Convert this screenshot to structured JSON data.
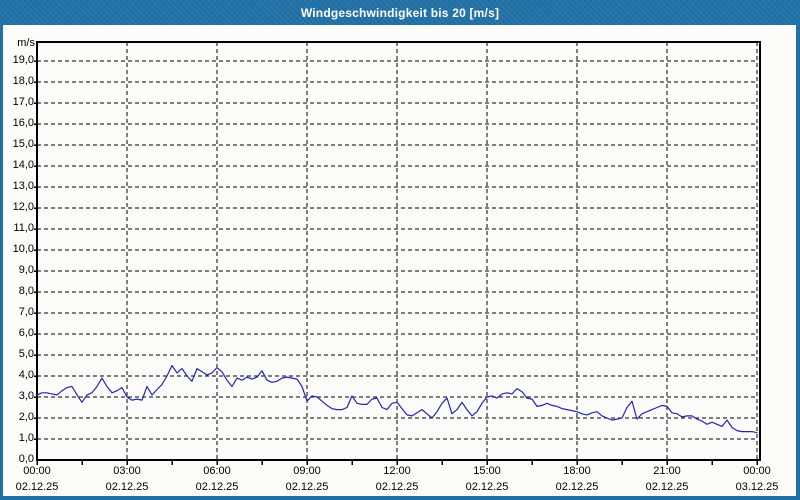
{
  "window": {
    "title": "Windgeschwindigkeit bis 20 [m/s]"
  },
  "colors": {
    "titlebar_bg": "#2171A7",
    "border": "#2171A7",
    "background": "#FCFDFB",
    "frame": "#000000",
    "grid": "#000000",
    "plot_line": "#2424B6",
    "title_text": "#FFFFFF"
  },
  "chart_data": {
    "type": "line",
    "title": "Windgeschwindigkeit bis 20 [m/s]",
    "unit_label": "m/s",
    "ylim": [
      0,
      20
    ],
    "ytick_step": 1.0,
    "ytick_labels": [
      "0,0",
      "1,0",
      "2,0",
      "3,0",
      "4,0",
      "5,0",
      "6,0",
      "7,0",
      "8,0",
      "9,0",
      "10,0",
      "11,0",
      "12,0",
      "13,0",
      "14,0",
      "15,0",
      "16,0",
      "17,0",
      "18,0",
      "19,0"
    ],
    "xlim_hours": [
      0,
      24
    ],
    "x_major_step_hours": 3,
    "x_minor_step_hours": 1.5,
    "grid": {
      "style": "dashed",
      "color": "#000000"
    },
    "legend": "none",
    "xticks": [
      {
        "hour": 0,
        "time": "00:00",
        "date": "02.12.25"
      },
      {
        "hour": 3,
        "time": "03:00",
        "date": "02.12.25"
      },
      {
        "hour": 6,
        "time": "06:00",
        "date": "02.12.25"
      },
      {
        "hour": 9,
        "time": "09:00",
        "date": "02.12.25"
      },
      {
        "hour": 12,
        "time": "12:00",
        "date": "02.12.25"
      },
      {
        "hour": 15,
        "time": "15:00",
        "date": "02.12.25"
      },
      {
        "hour": 18,
        "time": "18:00",
        "date": "02.12.25"
      },
      {
        "hour": 21,
        "time": "21:00",
        "date": "02.12.25"
      },
      {
        "hour": 24,
        "time": "00:00",
        "date": "03.12.25"
      }
    ],
    "series": [
      {
        "name": "Windgeschwindigkeit",
        "color": "#2424B6",
        "start_hour": 0,
        "interval_minutes": 10,
        "values": [
          3.1,
          3.2,
          3.2,
          3.15,
          3.1,
          3.3,
          3.45,
          3.5,
          3.1,
          2.75,
          3.1,
          3.2,
          3.5,
          3.9,
          3.5,
          3.2,
          3.3,
          3.45,
          3.0,
          2.85,
          2.9,
          2.85,
          3.5,
          3.1,
          3.35,
          3.6,
          4.0,
          4.5,
          4.15,
          4.35,
          4.0,
          3.75,
          4.35,
          4.2,
          4.05,
          4.15,
          4.4,
          4.2,
          3.8,
          3.5,
          3.9,
          3.8,
          3.95,
          3.85,
          3.95,
          4.25,
          3.8,
          3.7,
          3.75,
          3.9,
          3.95,
          3.9,
          3.85,
          3.5,
          2.8,
          3.05,
          3.0,
          2.8,
          2.6,
          2.45,
          2.4,
          2.4,
          2.5,
          3.05,
          2.7,
          2.65,
          2.65,
          2.9,
          2.95,
          2.5,
          2.4,
          2.7,
          2.75,
          2.45,
          2.15,
          2.1,
          2.25,
          2.4,
          2.2,
          2.0,
          2.3,
          2.7,
          2.95,
          2.2,
          2.4,
          2.75,
          2.4,
          2.1,
          2.3,
          2.7,
          3.0,
          3.05,
          2.95,
          3.15,
          3.2,
          3.15,
          3.4,
          3.25,
          2.95,
          2.9,
          2.55,
          2.6,
          2.7,
          2.6,
          2.55,
          2.45,
          2.4,
          2.35,
          2.3,
          2.2,
          2.15,
          2.25,
          2.3,
          2.1,
          2.0,
          1.9,
          1.95,
          2.0,
          2.5,
          2.8,
          1.95,
          2.2,
          2.3,
          2.4,
          2.5,
          2.6,
          2.55,
          2.25,
          2.2,
          2.05,
          2.1,
          2.1,
          1.95,
          1.85,
          1.7,
          1.8,
          1.7,
          1.6,
          1.9,
          1.55,
          1.4,
          1.35,
          1.35,
          1.35,
          1.3
        ]
      }
    ]
  }
}
